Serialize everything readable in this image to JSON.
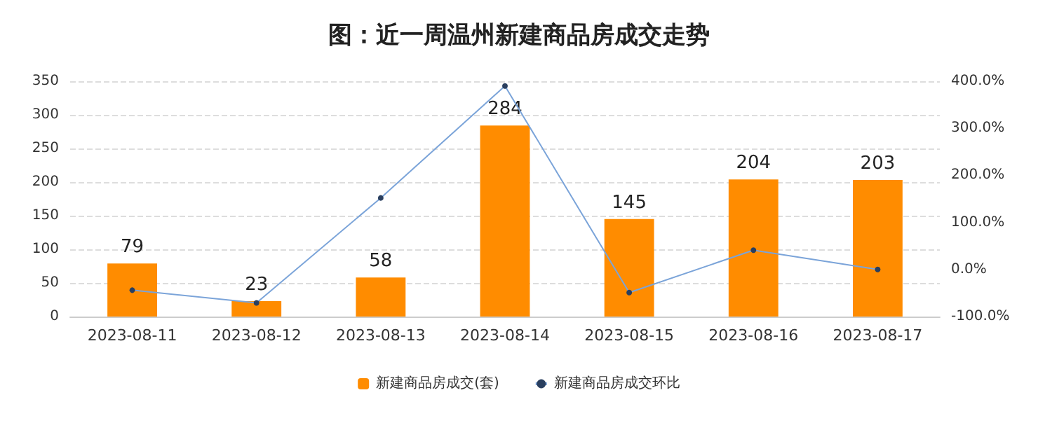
{
  "chart_data": {
    "type": "bar",
    "title": "图：近一周温州新建商品房成交走势",
    "categories": [
      "2023-08-11",
      "2023-08-12",
      "2023-08-13",
      "2023-08-14",
      "2023-08-15",
      "2023-08-16",
      "2023-08-17"
    ],
    "series": [
      {
        "name": "新建商品房成交(套)",
        "color": "#ff8c00",
        "values": [
          79,
          23,
          58,
          284,
          145,
          204,
          203
        ],
        "value_labels": [
          "79",
          "23",
          "58",
          "284",
          "145",
          "204",
          "203"
        ]
      },
      {
        "name": "新建商品房成交环比",
        "type": "line",
        "axis": "y2",
        "color": "#7ba4d9",
        "values": [
          -44,
          -71,
          152,
          390,
          -49,
          41,
          0
        ]
      }
    ],
    "ylim": [
      0,
      350
    ],
    "yticks": [
      0,
      50,
      100,
      150,
      200,
      250,
      300,
      350
    ],
    "y2lim": [
      -100,
      400
    ],
    "y2ticks": [
      {
        "value": -100,
        "label": "-100.0%"
      },
      {
        "value": 0,
        "label": "0.0%"
      },
      {
        "value": 100,
        "label": "100.0%"
      },
      {
        "value": 200,
        "label": "200.0%"
      },
      {
        "value": 300,
        "label": "300.0%"
      },
      {
        "value": 400,
        "label": "400.0%"
      }
    ],
    "grid": "y",
    "legend": "bottom",
    "marker": "circle",
    "line_style": "solid"
  }
}
